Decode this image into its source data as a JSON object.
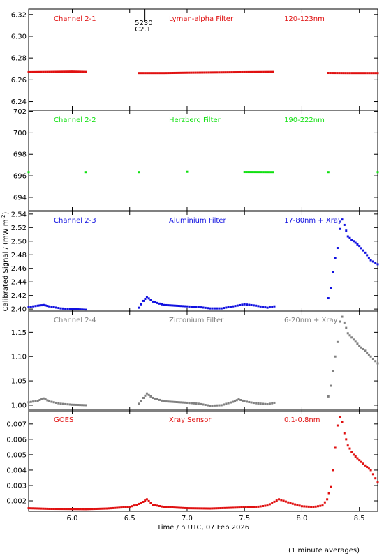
{
  "figure": {
    "xlabel": "Time / h UTC, 07 Feb 2026",
    "ylabel_main": "Calibrated Signal / (mW m",
    "ylabel_sup": "-2",
    "ylabel_close": ")",
    "footnote": "(1 minute averages)",
    "event_mark": {
      "x": 6.63,
      "number": "5230",
      "class": "C2.1"
    },
    "x_range": [
      5.62,
      8.66
    ],
    "x_ticks": [
      6.0,
      6.5,
      7.0,
      7.5,
      8.0,
      8.5
    ],
    "x_tick_labels": [
      "6.0",
      "6.5",
      "7.0",
      "7.5",
      "8.0",
      "8.5"
    ]
  },
  "chart_data": [
    {
      "type": "scatter",
      "channel": "Channel 2-1",
      "filter": "Lyman-alpha Filter",
      "band": "120-123nm",
      "color": "#e01010",
      "ylim": [
        6.232,
        6.325
      ],
      "y_ticks": [
        6.24,
        6.26,
        6.28,
        6.3,
        6.32
      ],
      "y_tick_labels": [
        "6.24",
        "6.26",
        "6.28",
        "6.30",
        "6.32"
      ],
      "points": [
        [
          5.62,
          6.267
        ],
        [
          5.8,
          6.2672
        ],
        [
          6.0,
          6.2675
        ],
        [
          6.12,
          6.2672
        ],
        [
          6.58,
          6.2662
        ],
        [
          6.8,
          6.2662
        ],
        [
          7.0,
          6.2665
        ],
        [
          7.3,
          6.2668
        ],
        [
          7.5,
          6.267
        ],
        [
          7.75,
          6.2672
        ],
        [
          8.23,
          6.2663
        ],
        [
          8.4,
          6.2662
        ],
        [
          8.66,
          6.2662
        ]
      ]
    },
    {
      "type": "scatter",
      "channel": "Channel 2-2",
      "filter": "Herzberg Filter",
      "band": "190-222nm",
      "color": "#10e010",
      "ylim": [
        692.7,
        702.1
      ],
      "y_ticks": [
        694,
        696,
        698,
        700,
        702
      ],
      "y_tick_labels": [
        "694",
        "696",
        "698",
        "700",
        "702"
      ],
      "points": [
        [
          5.62,
          696.35
        ],
        [
          6.12,
          696.35
        ],
        [
          6.58,
          696.35
        ],
        [
          7.0,
          696.38
        ],
        [
          7.5,
          696.36
        ],
        [
          7.75,
          696.35
        ],
        [
          8.23,
          696.35
        ],
        [
          8.66,
          696.35
        ]
      ]
    },
    {
      "type": "scatter",
      "channel": "Channel 2-3",
      "filter": "Aluminium Filter",
      "band": "17-80nm + Xray",
      "color": "#1010e0",
      "ylim": [
        2.396,
        2.545
      ],
      "y_ticks": [
        2.4,
        2.42,
        2.44,
        2.46,
        2.48,
        2.5,
        2.52,
        2.54
      ],
      "y_tick_labels": [
        "2.40",
        "2.42",
        "2.44",
        "2.46",
        "2.48",
        "2.50",
        "2.52",
        "2.54"
      ],
      "points": [
        [
          5.62,
          2.403
        ],
        [
          5.7,
          2.405
        ],
        [
          5.75,
          2.406
        ],
        [
          5.8,
          2.404
        ],
        [
          5.9,
          2.401
        ],
        [
          6.0,
          2.4
        ],
        [
          6.12,
          2.399
        ],
        [
          6.58,
          2.402
        ],
        [
          6.62,
          2.412
        ],
        [
          6.65,
          2.418
        ],
        [
          6.7,
          2.411
        ],
        [
          6.8,
          2.406
        ],
        [
          7.0,
          2.404
        ],
        [
          7.1,
          2.403
        ],
        [
          7.2,
          2.401
        ],
        [
          7.3,
          2.401
        ],
        [
          7.4,
          2.404
        ],
        [
          7.5,
          2.407
        ],
        [
          7.6,
          2.405
        ],
        [
          7.7,
          2.402
        ],
        [
          7.76,
          2.404
        ],
        [
          8.23,
          2.416
        ],
        [
          8.25,
          2.431
        ],
        [
          8.27,
          2.455
        ],
        [
          8.29,
          2.475
        ],
        [
          8.31,
          2.49
        ],
        [
          8.33,
          2.518
        ],
        [
          8.35,
          2.532
        ],
        [
          8.37,
          2.524
        ],
        [
          8.4,
          2.507
        ],
        [
          8.45,
          2.5
        ],
        [
          8.5,
          2.493
        ],
        [
          8.55,
          2.483
        ],
        [
          8.6,
          2.472
        ],
        [
          8.66,
          2.466
        ]
      ]
    },
    {
      "type": "scatter",
      "channel": "Channel 2-4",
      "filter": "Zirconium Filter",
      "band": "6-20nm + Xray",
      "color": "#808080",
      "ylim": [
        0.987,
        1.195
      ],
      "y_ticks": [
        1.0,
        1.05,
        1.1,
        1.15
      ],
      "y_tick_labels": [
        "1.00",
        "1.05",
        "1.10",
        "1.15"
      ],
      "points": [
        [
          5.62,
          1.006
        ],
        [
          5.7,
          1.009
        ],
        [
          5.75,
          1.014
        ],
        [
          5.8,
          1.008
        ],
        [
          5.9,
          1.003
        ],
        [
          6.0,
          1.001
        ],
        [
          6.12,
          1.0
        ],
        [
          6.58,
          1.003
        ],
        [
          6.62,
          1.015
        ],
        [
          6.65,
          1.024
        ],
        [
          6.7,
          1.015
        ],
        [
          6.8,
          1.008
        ],
        [
          7.0,
          1.005
        ],
        [
          7.1,
          1.003
        ],
        [
          7.2,
          0.999
        ],
        [
          7.3,
          1.0
        ],
        [
          7.4,
          1.007
        ],
        [
          7.45,
          1.012
        ],
        [
          7.5,
          1.008
        ],
        [
          7.6,
          1.004
        ],
        [
          7.7,
          1.002
        ],
        [
          7.76,
          1.005
        ],
        [
          8.23,
          1.018
        ],
        [
          8.25,
          1.04
        ],
        [
          8.27,
          1.07
        ],
        [
          8.29,
          1.1
        ],
        [
          8.31,
          1.13
        ],
        [
          8.33,
          1.172
        ],
        [
          8.35,
          1.182
        ],
        [
          8.37,
          1.17
        ],
        [
          8.4,
          1.148
        ],
        [
          8.45,
          1.135
        ],
        [
          8.5,
          1.122
        ],
        [
          8.55,
          1.112
        ],
        [
          8.6,
          1.1
        ],
        [
          8.66,
          1.086
        ]
      ]
    },
    {
      "type": "scatter",
      "channel": "GOES",
      "filter": "Xray Sensor",
      "band": "0.1-0.8nm",
      "color": "#e01010",
      "ylim": [
        0.00132,
        0.0079
      ],
      "y_ticks": [
        0.002,
        0.003,
        0.004,
        0.005,
        0.006,
        0.007
      ],
      "y_tick_labels": [
        "0.002",
        "0.003",
        "0.004",
        "0.005",
        "0.006",
        "0.007"
      ],
      "points": [
        [
          5.62,
          0.00152
        ],
        [
          5.8,
          0.00148
        ],
        [
          6.0,
          0.00147
        ],
        [
          6.12,
          0.00146
        ],
        [
          6.3,
          0.0015
        ],
        [
          6.5,
          0.0016
        ],
        [
          6.6,
          0.00185
        ],
        [
          6.65,
          0.0021
        ],
        [
          6.7,
          0.00175
        ],
        [
          6.8,
          0.0016
        ],
        [
          7.0,
          0.00152
        ],
        [
          7.2,
          0.0015
        ],
        [
          7.4,
          0.00155
        ],
        [
          7.6,
          0.0016
        ],
        [
          7.7,
          0.0017
        ],
        [
          7.8,
          0.0021
        ],
        [
          7.9,
          0.00185
        ],
        [
          8.0,
          0.00165
        ],
        [
          8.1,
          0.0016
        ],
        [
          8.18,
          0.0017
        ],
        [
          8.22,
          0.0021
        ],
        [
          8.25,
          0.0029
        ],
        [
          8.27,
          0.004
        ],
        [
          8.29,
          0.00545
        ],
        [
          8.31,
          0.0069
        ],
        [
          8.33,
          0.00745
        ],
        [
          8.35,
          0.00715
        ],
        [
          8.37,
          0.0064
        ],
        [
          8.4,
          0.0056
        ],
        [
          8.45,
          0.005
        ],
        [
          8.5,
          0.00465
        ],
        [
          8.55,
          0.0043
        ],
        [
          8.6,
          0.004
        ],
        [
          8.66,
          0.0032
        ]
      ]
    }
  ]
}
